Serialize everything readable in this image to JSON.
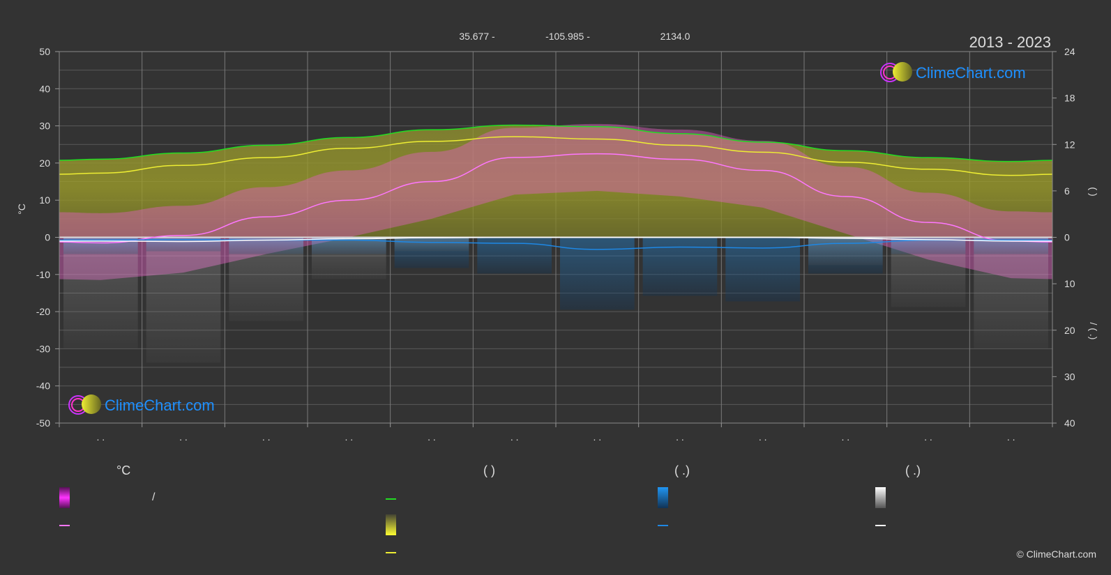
{
  "header": {
    "lat": "35.677 -",
    "lon": "-105.985 -",
    "elev": "2134.0",
    "period": "2013 - 2023"
  },
  "logo": {
    "text": "ClimeChart.com"
  },
  "copyright": "© ClimeChart.com",
  "legend": {
    "col1_head": "°C",
    "col1_item1": "/",
    "col2_head": "(          )",
    "col3_head": "(    .)",
    "col4_head": "(    .)"
  },
  "colors": {
    "background": "#333333",
    "grid": "#5a5a5a",
    "grid_major": "#7a7a7a",
    "max_temp_band": "#d020d0",
    "mean_temp": "#ff77ff",
    "daylight": "#22dd22",
    "sunshine": "#eeee33",
    "sunshine_band": "#9a9a2a",
    "rain": "#1e88e5",
    "snow": "#ffffff"
  },
  "chart_data": {
    "type": "area",
    "title": "",
    "period": "2013 - 2023",
    "xlabel": "",
    "x_tick_labels": [
      ". .",
      ". .",
      ". .",
      ". .",
      ". .",
      ". .",
      ". .",
      ". .",
      ". .",
      ". .",
      ". .",
      ". ."
    ],
    "x": [
      1,
      2,
      3,
      4,
      5,
      6,
      7,
      8,
      9,
      10,
      11,
      12
    ],
    "left_axis": {
      "label": "°C",
      "ylim": [
        -50,
        50
      ],
      "ticks": [
        50,
        40,
        30,
        20,
        10,
        0,
        -10,
        -20,
        -30,
        -40,
        -50
      ]
    },
    "right_axis_top": {
      "label": "(   )",
      "ylim": [
        0,
        24
      ],
      "ticks": [
        24,
        18,
        12,
        6,
        0
      ]
    },
    "right_axis_bottom": {
      "label": "/ (   .)",
      "ylim": [
        0,
        40
      ],
      "ticks": [
        0,
        10,
        20,
        30,
        40
      ]
    },
    "series": [
      {
        "axis": "left",
        "values": [
          -1.5,
          0.5,
          5.5,
          10,
          15,
          21.5,
          22.5,
          21,
          18,
          11,
          4,
          -1
        ]
      },
      {
        "axis": "right_top",
        "values": [
          10.1,
          10.9,
          11.9,
          12.9,
          13.9,
          14.5,
          14.3,
          13.4,
          12.3,
          11.2,
          10.3,
          9.8
        ]
      },
      {
        "axis": "right_top",
        "values": [
          8.3,
          9.3,
          10.3,
          11.5,
          12.4,
          13.0,
          12.7,
          11.9,
          11.0,
          9.7,
          8.8,
          8.0
        ]
      },
      {
        "axis": "right_bottom",
        "values": [
          0.6,
          0.5,
          0.6,
          0.6,
          1.1,
          1.3,
          2.6,
          2.1,
          2.3,
          1.3,
          0.6,
          0.6
        ]
      },
      {
        "axis": "right_bottom",
        "values": [
          0.8,
          0.9,
          0.6,
          0.3,
          0.1,
          0.0,
          0.0,
          0.0,
          0.0,
          0.2,
          0.5,
          0.8
        ]
      }
    ]
  }
}
